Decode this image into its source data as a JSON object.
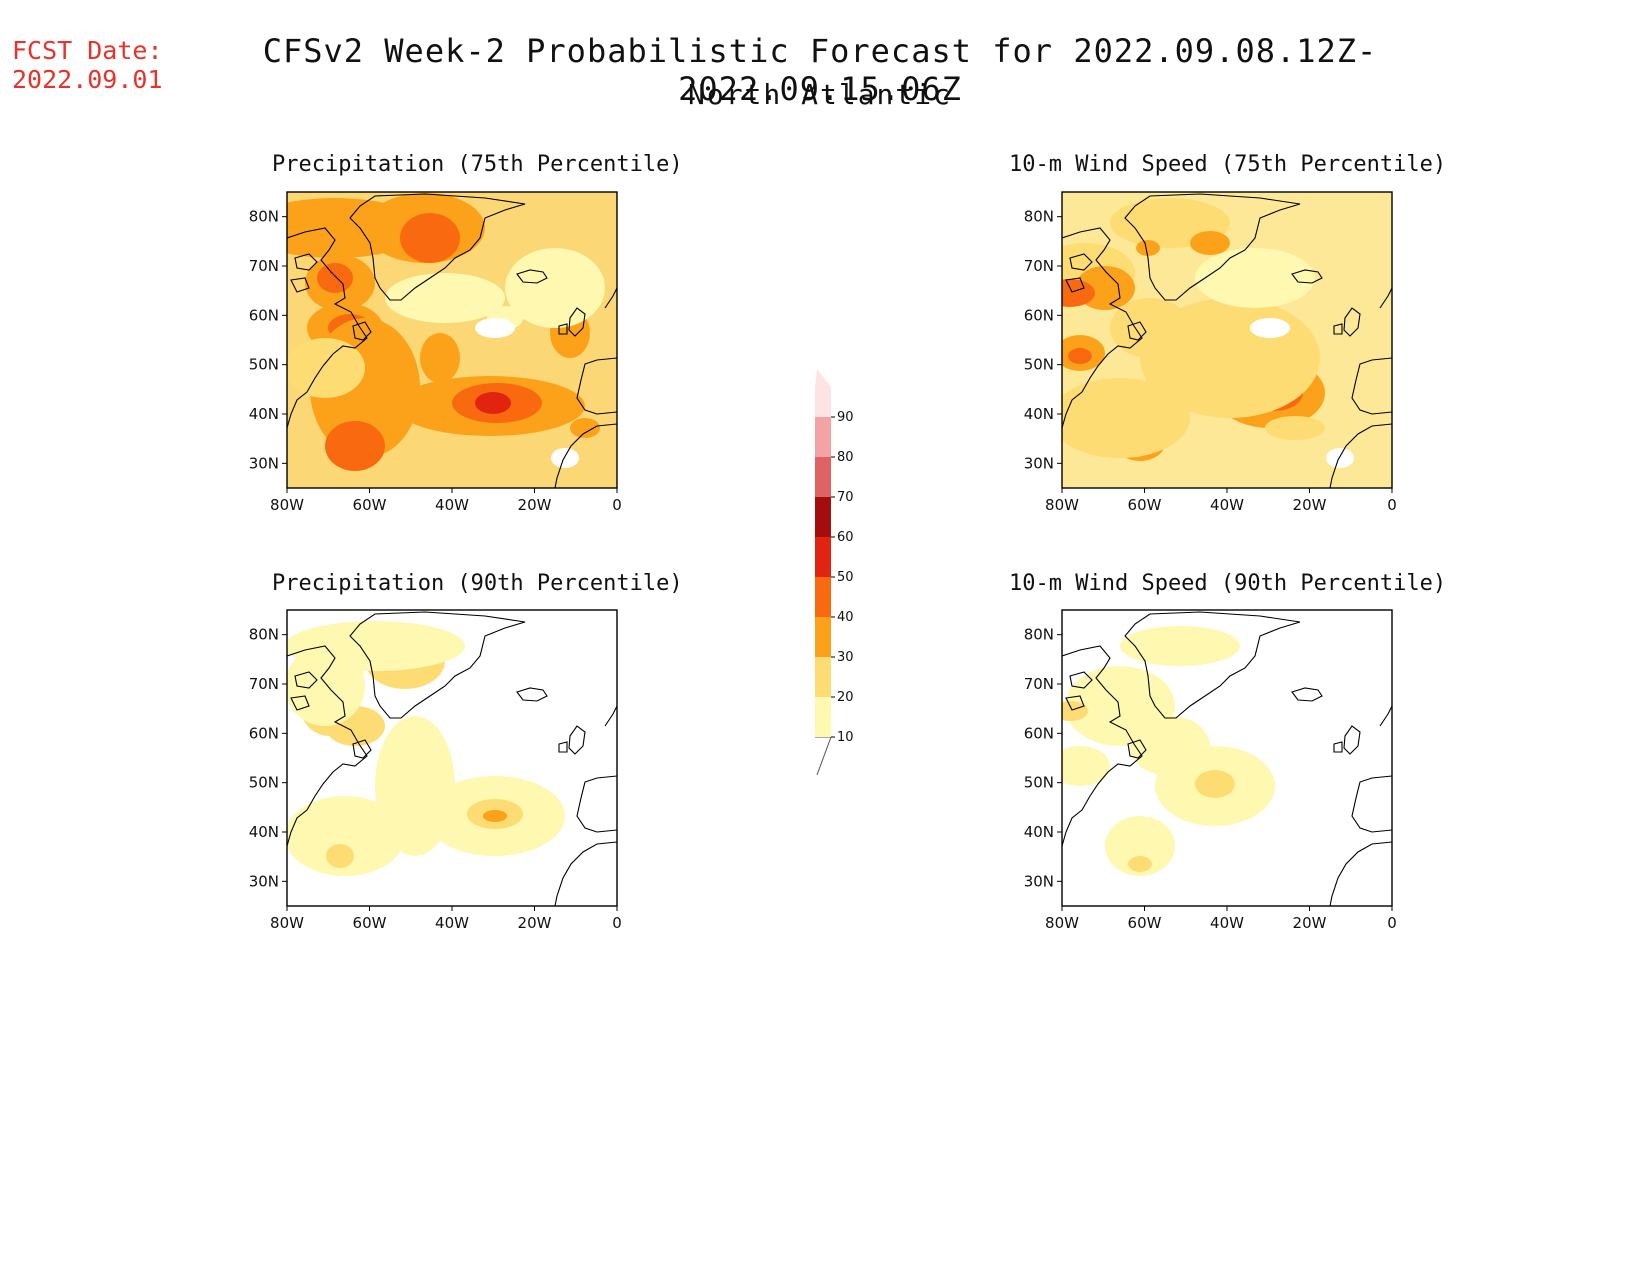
{
  "header": {
    "fcst_label": "FCST Date:",
    "fcst_date": "2022.09.01",
    "title": "CFSv2 Week-2 Probabilistic Forecast for 2022.09.08.12Z-2022.09.15.06Z",
    "region": "North Atlantic"
  },
  "axes": {
    "lat_ticks": [
      "80N",
      "70N",
      "60N",
      "50N",
      "40N",
      "30N"
    ],
    "lon_ticks": [
      "80W",
      "60W",
      "40W",
      "20W",
      "0"
    ]
  },
  "panels": [
    {
      "id": "precip75",
      "title": "Precipitation (75th Percentile)",
      "background": "#fcd776"
    },
    {
      "id": "wind75",
      "title": "10-m Wind Speed (75th Percentile)",
      "background": "#fde897"
    },
    {
      "id": "precip90",
      "title": "Precipitation (90th Percentile)",
      "background": "#ffffff"
    },
    {
      "id": "wind90",
      "title": "10-m Wind Speed (90th Percentile)",
      "background": "#ffffff"
    }
  ],
  "colorbar": {
    "levels": [
      "10",
      "20",
      "30",
      "40",
      "50",
      "60",
      "70",
      "80",
      "90"
    ],
    "colors": [
      "#fff8b0",
      "#fddc73",
      "#fca21a",
      "#f96a10",
      "#e02410",
      "#a50d0d",
      "#df6363",
      "#f2a3a3",
      "#fde3e3"
    ]
  },
  "colors": {
    "lightest": "#fff8b0",
    "light": "#fddc73",
    "orange": "#fca21a",
    "dark_orange": "#f96a10",
    "red": "#e02410",
    "dark_red": "#a50d0d"
  }
}
